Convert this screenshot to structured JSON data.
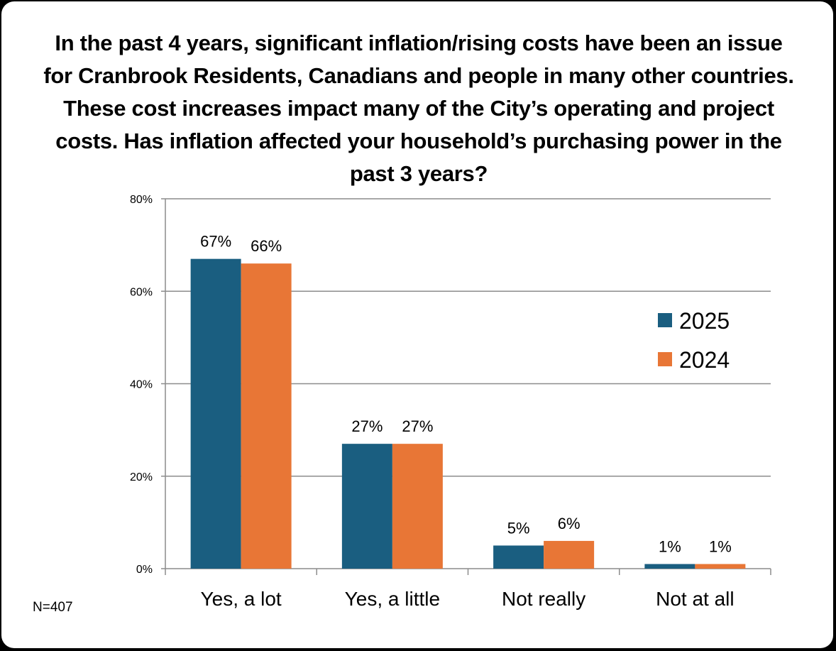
{
  "chart_data": {
    "type": "bar",
    "title": "In the past 4 years, significant inflation/rising costs have been an issue for Cranbrook Residents, Canadians and people in many other countries.  These cost increases impact many of the City’s operating and project costs.    Has inflation affected your household’s purchasing power in the past 3 years?",
    "categories": [
      "Yes, a lot",
      "Yes, a little",
      "Not really",
      "Not at all"
    ],
    "series": [
      {
        "name": "2025",
        "color": "#1a5e80",
        "values": [
          67,
          27,
          5,
          1
        ],
        "labels": [
          "67%",
          "27%",
          "5%",
          "1%"
        ]
      },
      {
        "name": "2024",
        "color": "#e87636",
        "values": [
          66,
          27,
          6,
          1
        ],
        "labels": [
          "66%",
          "27%",
          "6%",
          "1%"
        ]
      }
    ],
    "xlabel": "",
    "ylabel": "",
    "ylim": [
      0,
      80
    ],
    "yticks": [
      0,
      20,
      40,
      60,
      80
    ],
    "ytick_labels": [
      "0%",
      "20%",
      "40%",
      "60%",
      "80%"
    ],
    "grid": true,
    "legend_position": "right"
  },
  "note": "N=407"
}
